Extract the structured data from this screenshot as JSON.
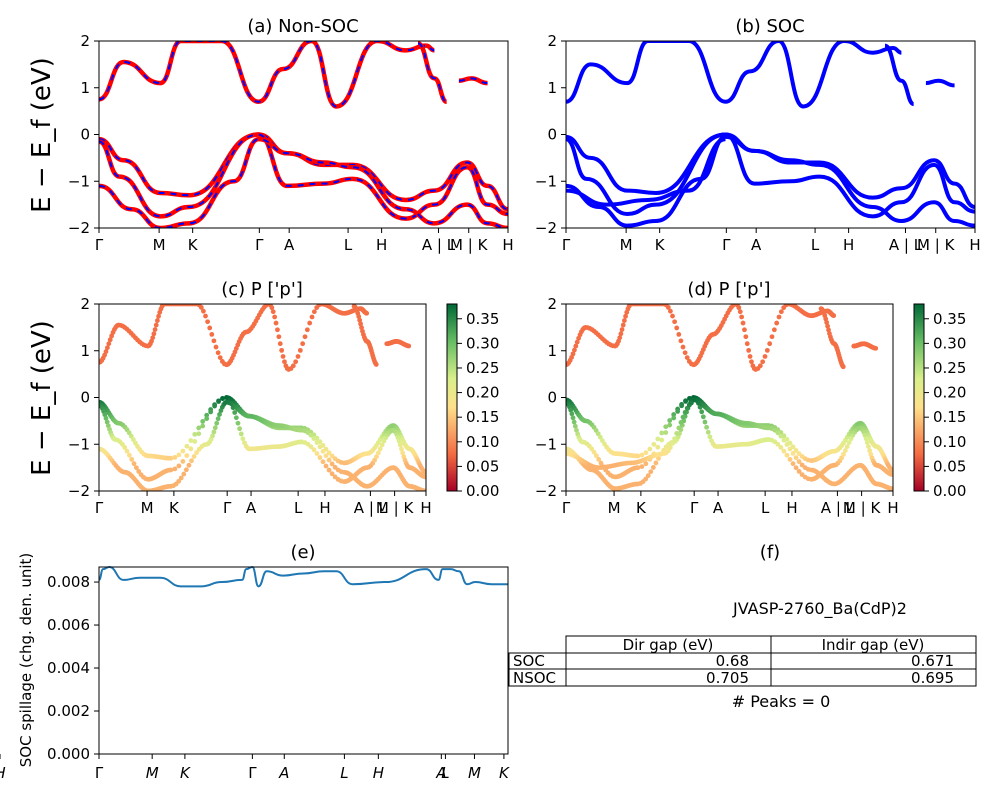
{
  "colors": {
    "nonsoc_primary": "#ff0000",
    "nonsoc_dash": "#0000ff",
    "soc": "#0000ff",
    "spillage": "#1f77b4",
    "colormap": "RdYlGn",
    "colormap_stops": [
      "#a50026",
      "#f46d43",
      "#fee08b",
      "#d9ef8b",
      "#66bd63",
      "#006837"
    ]
  },
  "chart_data": [
    {
      "id": "a",
      "type": "line",
      "title": "(a) Non-SOC",
      "ylabel": "E − E_f (eV)",
      "ylim": [
        -2,
        2
      ],
      "yticks": [
        "2",
        "1",
        "0",
        "−1",
        "−2"
      ],
      "kpath_ticks": [
        "Γ",
        "M",
        "K",
        "Γ",
        "A",
        "L",
        "H",
        "A | L",
        "M | K",
        "H"
      ],
      "style": "red solid with blue dashes overlay",
      "bands": [
        {
          "name": "valence-1",
          "k": [
            0,
            0.06,
            0.15,
            0.22,
            0.39,
            0.46,
            0.55,
            0.62,
            0.75,
            0.82,
            0.9,
            0.95,
            1
          ],
          "E": [
            -0.1,
            -0.55,
            -1.25,
            -1.3,
            0,
            -0.4,
            -0.65,
            -0.65,
            -1.4,
            -1.2,
            -0.6,
            -1.1,
            -1.6
          ]
        },
        {
          "name": "valence-2",
          "k": [
            0,
            0.05,
            0.15,
            0.22,
            0.39,
            0.46,
            0.55,
            0.62,
            0.75,
            0.82,
            0.9,
            0.95,
            1
          ],
          "E": [
            -0.15,
            -0.9,
            -1.75,
            -1.55,
            0,
            -1.1,
            -1.05,
            -0.95,
            -1.8,
            -1.5,
            -0.7,
            -1.5,
            -1.7
          ]
        },
        {
          "name": "valence-3",
          "k": [
            0,
            0.08,
            0.15,
            0.22,
            0.33,
            0.39,
            0.46,
            0.55,
            0.62,
            0.75,
            0.82,
            0.9,
            0.95,
            1
          ],
          "E": [
            -1.1,
            -1.6,
            -2.0,
            -1.9,
            -1.0,
            -0.1,
            -0.4,
            -0.6,
            -0.7,
            -1.6,
            -1.9,
            -1.5,
            -1.9,
            -2.0
          ]
        },
        {
          "name": "conduction-1",
          "k": [
            0,
            0.06,
            0.15,
            0.2,
            0.3,
            0.39,
            0.45,
            0.52,
            0.58,
            0.68,
            0.75,
            0.8,
            0.82
          ],
          "E": [
            0.75,
            1.55,
            1.1,
            2.0,
            2.0,
            0.7,
            1.4,
            2.0,
            0.6,
            2.0,
            1.8,
            1.9,
            1.8
          ]
        },
        {
          "name": "conduction-2",
          "k": [
            0.88,
            0.91,
            0.95
          ],
          "E": [
            1.15,
            1.2,
            1.1
          ]
        },
        {
          "name": "conduction-3",
          "k": [
            0.78,
            0.82,
            0.85
          ],
          "E": [
            1.95,
            1.2,
            0.7
          ]
        }
      ]
    },
    {
      "id": "b",
      "type": "line",
      "title": "(b) SOC",
      "ylim": [
        -2,
        2
      ],
      "yticks": [
        "2",
        "1",
        "0",
        "−1",
        "−2"
      ],
      "kpath_ticks": [
        "Γ",
        "M",
        "K",
        "Γ",
        "A",
        "L",
        "H",
        "A | L",
        "M | K",
        "H"
      ],
      "bands": [
        {
          "name": "valence-1",
          "k": [
            0,
            0.06,
            0.15,
            0.22,
            0.39,
            0.46,
            0.55,
            0.62,
            0.75,
            0.82,
            0.9,
            0.95,
            1
          ],
          "E": [
            -0.05,
            -0.5,
            -1.2,
            -1.25,
            0,
            -0.35,
            -0.6,
            -0.6,
            -1.35,
            -1.15,
            -0.55,
            -1.05,
            -1.55
          ]
        },
        {
          "name": "valence-2",
          "k": [
            0,
            0.05,
            0.15,
            0.22,
            0.39,
            0.46,
            0.55,
            0.62,
            0.75,
            0.82,
            0.9,
            0.95,
            1
          ],
          "E": [
            -0.1,
            -0.95,
            -1.7,
            -1.5,
            0,
            -1.05,
            -1.0,
            -0.9,
            -1.75,
            -1.45,
            -0.65,
            -1.45,
            -1.65
          ]
        },
        {
          "name": "valence-3",
          "k": [
            0,
            0.08,
            0.15,
            0.22,
            0.33,
            0.39,
            0.46,
            0.55,
            0.62,
            0.75,
            0.82,
            0.9,
            0.95,
            1
          ],
          "E": [
            -1.1,
            -1.55,
            -1.95,
            -1.85,
            -0.95,
            -0.05,
            -0.35,
            -0.55,
            -0.65,
            -1.55,
            -1.85,
            -1.45,
            -1.85,
            -1.95
          ]
        },
        {
          "name": "valence-4",
          "k": [
            0,
            0.1,
            0.2,
            0.3,
            0.39
          ],
          "E": [
            -1.2,
            -1.5,
            -1.4,
            -1.2,
            -0.1
          ]
        },
        {
          "name": "conduction-1",
          "k": [
            0,
            0.06,
            0.15,
            0.2,
            0.3,
            0.39,
            0.45,
            0.52,
            0.58,
            0.68,
            0.75,
            0.8,
            0.82
          ],
          "E": [
            0.7,
            1.5,
            1.1,
            2.0,
            2.0,
            0.7,
            1.35,
            2.0,
            0.6,
            2.0,
            1.75,
            1.85,
            1.75
          ]
        },
        {
          "name": "conduction-2",
          "k": [
            0.88,
            0.91,
            0.95
          ],
          "E": [
            1.1,
            1.15,
            1.05
          ]
        },
        {
          "name": "conduction-3",
          "k": [
            0.78,
            0.82,
            0.85
          ],
          "E": [
            1.9,
            1.15,
            0.65
          ]
        }
      ]
    },
    {
      "id": "c",
      "type": "scatter",
      "title": "(c)  P ['p']",
      "ylabel": "E − E_f (eV)",
      "ylim": [
        -2,
        2
      ],
      "yticks": [
        "2",
        "1",
        "0",
        "−1",
        "−2"
      ],
      "kpath_ticks": [
        "Γ",
        "M",
        "K",
        "Γ",
        "A",
        "L",
        "H",
        "A | L",
        "M | K",
        "H"
      ],
      "colorbar_ticks": [
        "0.35",
        "0.30",
        "0.25",
        "0.20",
        "0.15",
        "0.10",
        "0.05",
        "0.00"
      ],
      "colorbar_range": [
        0,
        0.38
      ]
    },
    {
      "id": "d",
      "type": "scatter",
      "title": "(d) P ['p']",
      "ylim": [
        -2,
        2
      ],
      "yticks": [
        "2",
        "1",
        "0",
        "−1",
        "−2"
      ],
      "kpath_ticks": [
        "Γ",
        "M",
        "K",
        "Γ",
        "A",
        "L",
        "H",
        "A | L",
        "M | K",
        "H"
      ],
      "colorbar_ticks": [
        "0.35",
        "0.30",
        "0.25",
        "0.20",
        "0.15",
        "0.10",
        "0.05",
        "0.00"
      ],
      "colorbar_range": [
        0,
        0.38
      ]
    },
    {
      "id": "e",
      "type": "line",
      "title": "(e)",
      "ylabel": "SOC spillage (chg. den. unit)",
      "ylim": [
        0,
        0.0087
      ],
      "yticks": [
        "0.008",
        "0.006",
        "0.004",
        "0.002",
        "0.000"
      ],
      "xticks": [
        "Γ",
        "M",
        "K",
        "Γ",
        "A",
        "L",
        "H",
        "A",
        "L",
        "M",
        "K",
        "H"
      ],
      "series": [
        {
          "x": [
            0,
            0.01,
            0.025,
            0.06,
            0.1,
            0.15,
            0.2,
            0.25,
            0.3,
            0.35,
            0.36,
            0.375,
            0.39,
            0.41,
            0.45,
            0.5,
            0.55,
            0.58,
            0.62,
            0.7,
            0.8,
            0.83,
            0.84,
            0.86,
            0.88,
            0.9,
            0.92,
            0.96,
            1
          ],
          "y": [
            0.0081,
            0.0086,
            0.0087,
            0.0081,
            0.0082,
            0.0082,
            0.0078,
            0.0078,
            0.008,
            0.0081,
            0.0086,
            0.0087,
            0.0078,
            0.0085,
            0.0083,
            0.0084,
            0.0085,
            0.0085,
            0.0079,
            0.008,
            0.0086,
            0.0081,
            0.0086,
            0.0086,
            0.0085,
            0.0079,
            0.008,
            0.0079,
            0.0079
          ]
        }
      ]
    }
  ],
  "panel_f": {
    "title": "(f)",
    "material": "JVASP-2760_Ba(CdP)2",
    "table": {
      "headers": [
        "",
        "Dir gap (eV)",
        "Indir gap (eV)"
      ],
      "rows": [
        {
          "label": "SOC",
          "dir": "0.68",
          "indir": "0.671"
        },
        {
          "label": "NSOC",
          "dir": "0.705",
          "indir": "0.695"
        }
      ]
    },
    "peaks": "# Peaks = 0"
  }
}
